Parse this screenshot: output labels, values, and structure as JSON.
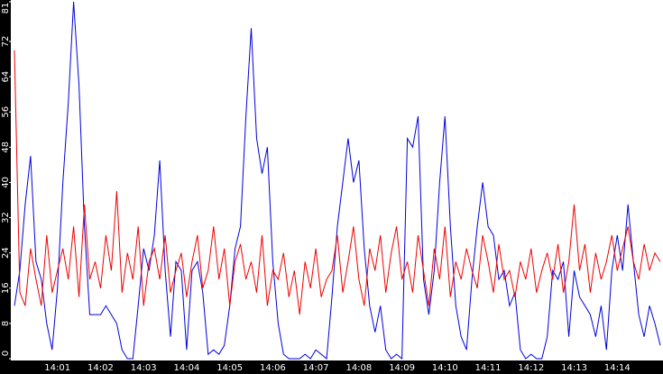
{
  "chart_data": {
    "type": "line",
    "categories": [
      null,
      null,
      null,
      null,
      null,
      null,
      null,
      null,
      "14:01",
      null,
      null,
      null,
      null,
      null,
      null,
      null,
      "14:02",
      null,
      null,
      null,
      null,
      null,
      null,
      null,
      "14:03",
      null,
      null,
      null,
      null,
      null,
      null,
      null,
      "14:04",
      null,
      null,
      null,
      null,
      null,
      null,
      null,
      "14:05",
      null,
      null,
      null,
      null,
      null,
      null,
      null,
      "14:06",
      null,
      null,
      null,
      null,
      null,
      null,
      null,
      "14:07",
      null,
      null,
      null,
      null,
      null,
      null,
      null,
      "14:08",
      null,
      null,
      null,
      null,
      null,
      null,
      null,
      "14:09",
      null,
      null,
      null,
      null,
      null,
      null,
      null,
      "14:10",
      null,
      null,
      null,
      null,
      null,
      null,
      null,
      "14:11",
      null,
      null,
      null,
      null,
      null,
      null,
      null,
      "14:12",
      null,
      null,
      null,
      null,
      null,
      null,
      null,
      "14:13",
      null,
      null,
      null,
      null,
      null,
      null,
      null,
      "14:14",
      null,
      null,
      null,
      null,
      null,
      null,
      null,
      null
    ],
    "series": [
      {
        "color": "#0000dd",
        "values": [
          12,
          20,
          35,
          46,
          22,
          18,
          8,
          2,
          16,
          40,
          58,
          81,
          62,
          30,
          10,
          10,
          10,
          12,
          10,
          8,
          2,
          0,
          0,
          12,
          25,
          20,
          28,
          45,
          20,
          5,
          22,
          20,
          2,
          20,
          22,
          15,
          1,
          2,
          1,
          3,
          12,
          25,
          30,
          55,
          75,
          50,
          42,
          48,
          22,
          8,
          1,
          0,
          0,
          0,
          1,
          0,
          2,
          1,
          0,
          14,
          30,
          40,
          50,
          40,
          45,
          25,
          12,
          6,
          12,
          2,
          0,
          1,
          0,
          50,
          48,
          55,
          18,
          10,
          20,
          40,
          55,
          30,
          12,
          5,
          2,
          18,
          30,
          40,
          30,
          28,
          18,
          20,
          12,
          15,
          2,
          0,
          1,
          0,
          0,
          5,
          20,
          18,
          22,
          5,
          20,
          14,
          12,
          10,
          5,
          12,
          2,
          20,
          28,
          20,
          35,
          22,
          10,
          5,
          12,
          8,
          3
        ]
      },
      {
        "color": "#ee0000",
        "values": [
          70,
          15,
          12,
          25,
          18,
          12,
          28,
          15,
          20,
          25,
          18,
          30,
          14,
          35,
          18,
          22,
          16,
          28,
          20,
          38,
          15,
          24,
          18,
          30,
          12,
          22,
          25,
          18,
          28,
          15,
          20,
          24,
          14,
          22,
          28,
          16,
          20,
          30,
          18,
          25,
          12,
          22,
          26,
          18,
          22,
          15,
          28,
          12,
          20,
          18,
          24,
          14,
          20,
          10,
          22,
          16,
          25,
          14,
          18,
          20,
          28,
          15,
          22,
          30,
          18,
          12,
          25,
          20,
          28,
          15,
          24,
          30,
          18,
          22,
          15,
          28,
          20,
          12,
          25,
          18,
          30,
          14,
          22,
          18,
          25,
          20,
          16,
          28,
          22,
          15,
          26,
          18,
          20,
          14,
          22,
          18,
          25,
          15,
          20,
          24,
          18,
          26,
          15,
          22,
          35,
          20,
          26,
          15,
          24,
          18,
          22,
          28,
          20,
          25,
          30,
          22,
          18,
          26,
          20,
          24,
          22
        ]
      }
    ],
    "ylim": [
      0,
      81
    ],
    "yticks": [
      0,
      8,
      16,
      24,
      32,
      40,
      48,
      56,
      64,
      72,
      81
    ]
  }
}
